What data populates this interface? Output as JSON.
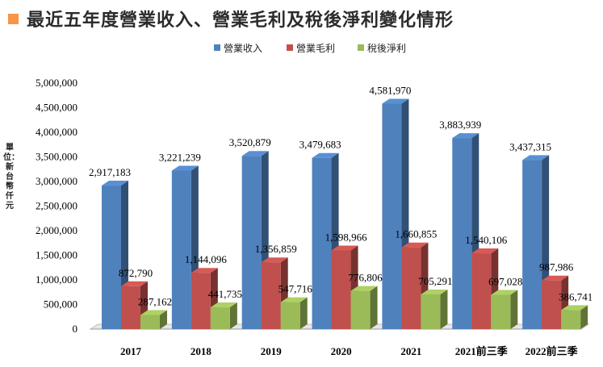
{
  "header": {
    "title": "最近五年度營業收入、營業毛利及稅後淨利變化情形",
    "unit": "單位：新台幣仟元"
  },
  "chart_data": {
    "type": "bar",
    "title": "最近五年度營業收入、營業毛利及稅後淨利變化情形",
    "ylabel": "單位：新台幣仟元",
    "xlabel": "",
    "categories": [
      "2017",
      "2018",
      "2019",
      "2020",
      "2021",
      "2021前三季",
      "2022前三季"
    ],
    "ylim": [
      0,
      5000000
    ],
    "yticks": [
      0,
      500000,
      1000000,
      1500000,
      2000000,
      2500000,
      3000000,
      3500000,
      4000000,
      4500000,
      5000000
    ],
    "ytick_labels": [
      "0",
      "500,000",
      "1,000,000",
      "1,500,000",
      "2,000,000",
      "2,500,000",
      "3,000,000",
      "3,500,000",
      "4,000,000",
      "4,500,000",
      "5,000,000"
    ],
    "legend_position": "top",
    "grid": false,
    "series": [
      {
        "name": "營業收入",
        "color": "#4f81bd",
        "values": [
          2917183,
          3221239,
          3520879,
          3479683,
          4581970,
          3883939,
          3437315
        ],
        "labels": [
          "2,917,183",
          "3,221,239",
          "3,520,879",
          "3,479,683",
          "4,581,970",
          "3,883,939",
          "3,437,315"
        ]
      },
      {
        "name": "營業毛利",
        "color": "#c0504d",
        "values": [
          872790,
          1144096,
          1356859,
          1598966,
          1660855,
          1540106,
          987986
        ],
        "labels": [
          "872,790",
          "1,144,096",
          "1,356,859",
          "1,598,966",
          "1,660,855",
          "1,540,106",
          "987,986"
        ]
      },
      {
        "name": "稅後淨利",
        "color": "#9bbb59",
        "values": [
          287162,
          441735,
          547716,
          776806,
          705291,
          697028,
          386741
        ],
        "labels": [
          "287,162",
          "441,735",
          "547,716",
          "776,806",
          "705,291",
          "697,028",
          "386,741"
        ]
      }
    ]
  }
}
